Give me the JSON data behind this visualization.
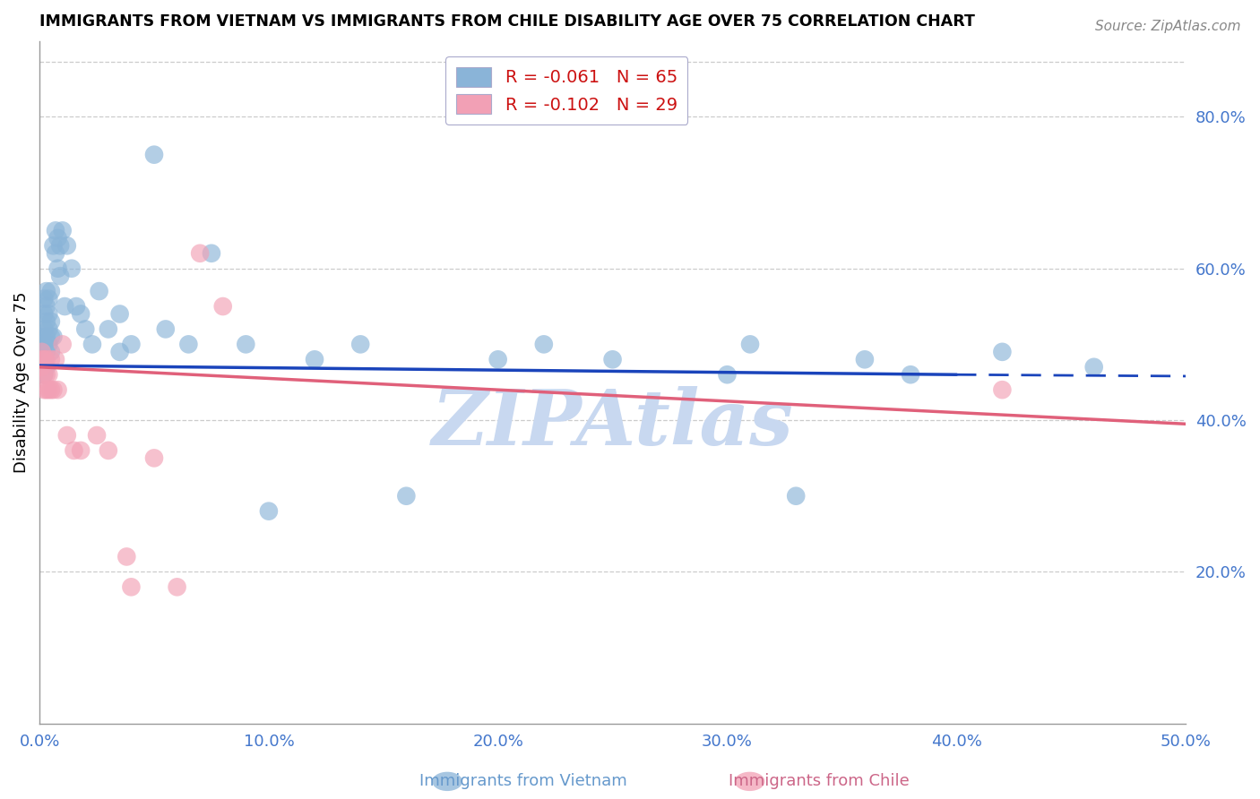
{
  "title": "IMMIGRANTS FROM VIETNAM VS IMMIGRANTS FROM CHILE DISABILITY AGE OVER 75 CORRELATION CHART",
  "source": "Source: ZipAtlas.com",
  "ylabel": "Disability Age Over 75",
  "xmin": 0.0,
  "xmax": 0.5,
  "ymin": 0.0,
  "ymax": 0.9,
  "yticks": [
    0.2,
    0.4,
    0.6,
    0.8
  ],
  "ytick_labels": [
    "20.0%",
    "40.0%",
    "60.0%",
    "80.0%"
  ],
  "xticks": [
    0.0,
    0.1,
    0.2,
    0.3,
    0.4,
    0.5
  ],
  "xtick_labels": [
    "0.0%",
    "10.0%",
    "20.0%",
    "30.0%",
    "40.0%",
    "50.0%"
  ],
  "vietnam_color": "#8ab4d8",
  "chile_color": "#f2a0b5",
  "vietnam_R": -0.061,
  "vietnam_N": 65,
  "chile_R": -0.102,
  "chile_N": 29,
  "line_blue": "#1a44bb",
  "line_pink": "#e0607a",
  "watermark": "ZIPAtlas",
  "watermark_color": "#c8d8f0",
  "background_color": "#ffffff",
  "viet_line_start_y": 0.472,
  "viet_line_end_y": 0.46,
  "viet_line_end_x": 0.4,
  "viet_line_dashed_end_y": 0.458,
  "chile_line_start_y": 0.47,
  "chile_line_end_y": 0.395,
  "vietnam_x": [
    0.001,
    0.001,
    0.001,
    0.001,
    0.001,
    0.002,
    0.002,
    0.002,
    0.002,
    0.002,
    0.002,
    0.003,
    0.003,
    0.003,
    0.003,
    0.003,
    0.003,
    0.004,
    0.004,
    0.004,
    0.004,
    0.005,
    0.005,
    0.005,
    0.005,
    0.006,
    0.006,
    0.007,
    0.007,
    0.008,
    0.008,
    0.009,
    0.009,
    0.01,
    0.011,
    0.012,
    0.014,
    0.016,
    0.018,
    0.02,
    0.023,
    0.026,
    0.03,
    0.035,
    0.035,
    0.04,
    0.05,
    0.055,
    0.065,
    0.075,
    0.09,
    0.1,
    0.12,
    0.14,
    0.16,
    0.2,
    0.22,
    0.25,
    0.3,
    0.31,
    0.33,
    0.36,
    0.38,
    0.42,
    0.46
  ],
  "vietnam_y": [
    0.47,
    0.48,
    0.49,
    0.5,
    0.51,
    0.46,
    0.48,
    0.5,
    0.52,
    0.54,
    0.56,
    0.47,
    0.49,
    0.51,
    0.53,
    0.55,
    0.57,
    0.5,
    0.52,
    0.54,
    0.56,
    0.49,
    0.51,
    0.53,
    0.57,
    0.51,
    0.63,
    0.62,
    0.65,
    0.6,
    0.64,
    0.59,
    0.63,
    0.65,
    0.55,
    0.63,
    0.6,
    0.55,
    0.54,
    0.52,
    0.5,
    0.57,
    0.52,
    0.49,
    0.54,
    0.5,
    0.75,
    0.52,
    0.5,
    0.62,
    0.5,
    0.28,
    0.48,
    0.5,
    0.3,
    0.48,
    0.5,
    0.48,
    0.46,
    0.5,
    0.3,
    0.48,
    0.46,
    0.49,
    0.47
  ],
  "chile_x": [
    0.001,
    0.001,
    0.001,
    0.002,
    0.002,
    0.002,
    0.003,
    0.003,
    0.003,
    0.004,
    0.004,
    0.005,
    0.005,
    0.006,
    0.007,
    0.008,
    0.01,
    0.012,
    0.015,
    0.018,
    0.025,
    0.03,
    0.038,
    0.04,
    0.05,
    0.06,
    0.07,
    0.08,
    0.42
  ],
  "chile_y": [
    0.47,
    0.48,
    0.49,
    0.44,
    0.46,
    0.48,
    0.44,
    0.46,
    0.48,
    0.44,
    0.46,
    0.44,
    0.48,
    0.44,
    0.48,
    0.44,
    0.5,
    0.38,
    0.36,
    0.36,
    0.38,
    0.36,
    0.22,
    0.18,
    0.35,
    0.18,
    0.62,
    0.55,
    0.44
  ]
}
